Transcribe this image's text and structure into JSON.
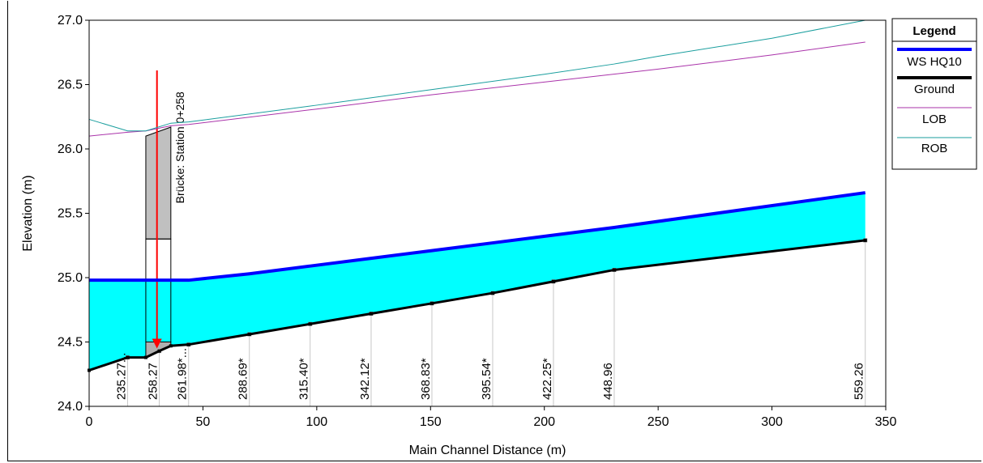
{
  "chart_data": {
    "type": "line",
    "title": "",
    "xlabel": "Main Channel Distance (m)",
    "ylabel": "Elevation (m)",
    "xlim": [
      0,
      350
    ],
    "ylim": [
      24.0,
      27.0
    ],
    "xticks": [
      0,
      50,
      100,
      150,
      200,
      250,
      300,
      350
    ],
    "yticks": [
      24.0,
      24.5,
      25.0,
      25.5,
      26.0,
      26.5,
      27.0
    ],
    "grid": false,
    "legend_position": "right",
    "legend": {
      "title": "Legend",
      "entries": [
        "WS  HQ10",
        "Ground",
        "LOB",
        "ROB"
      ]
    },
    "series": [
      {
        "name": "WS  HQ10",
        "color": "#0000ff",
        "x": [
          0,
          43.7,
          70.4,
          97.1,
          123.9,
          150.6,
          177.3,
          204.0,
          230.7,
          341.0
        ],
        "y": [
          24.98,
          24.98,
          25.03,
          25.09,
          25.15,
          25.21,
          25.27,
          25.33,
          25.39,
          25.66
        ]
      },
      {
        "name": "Ground",
        "color": "#000000",
        "x": [
          0,
          16.9,
          24.9,
          30.8,
          35.9,
          43.7,
          70.4,
          97.1,
          123.9,
          150.6,
          177.3,
          204.0,
          230.7,
          341.0
        ],
        "y": [
          24.28,
          24.38,
          24.38,
          24.43,
          24.47,
          24.48,
          24.56,
          24.64,
          24.72,
          24.8,
          24.88,
          24.97,
          25.06,
          25.29
        ]
      },
      {
        "name": "LOB",
        "color": "#aa33aa",
        "x": [
          0,
          16.9,
          24.9,
          35.9,
          43.7,
          100,
          150,
          200,
          250,
          300,
          341.0
        ],
        "y": [
          26.1,
          26.13,
          26.14,
          26.18,
          26.19,
          26.31,
          26.42,
          26.52,
          26.62,
          26.73,
          26.83
        ]
      },
      {
        "name": "ROB",
        "color": "#1a9e9e",
        "x": [
          0,
          16.9,
          24.9,
          35.9,
          43.7,
          100,
          150,
          200,
          230.7,
          250,
          300,
          341.0
        ],
        "y": [
          26.23,
          26.14,
          26.14,
          26.2,
          26.21,
          26.34,
          26.46,
          26.58,
          26.66,
          26.72,
          26.86,
          27.0
        ]
      }
    ],
    "cross_sections": [
      {
        "label": "235.27",
        "marker": "...",
        "x": 16.9
      },
      {
        "label": "258.27",
        "marker": "",
        "x": 30.8
      },
      {
        "label": "261.98",
        "marker": "*...",
        "x": 43.7
      },
      {
        "label": "288.69",
        "marker": "*",
        "x": 70.4
      },
      {
        "label": "315.40",
        "marker": "*",
        "x": 97.1
      },
      {
        "label": "342.12",
        "marker": "*",
        "x": 123.9
      },
      {
        "label": "368.83",
        "marker": "*",
        "x": 150.6
      },
      {
        "label": "395.54",
        "marker": "*",
        "x": 177.3
      },
      {
        "label": "422.25",
        "marker": "*",
        "x": 204.0
      },
      {
        "label": "448.96",
        "marker": "",
        "x": 230.7
      },
      {
        "label": "559.26",
        "marker": "",
        "x": 341.0
      }
    ],
    "bridge": {
      "label": "Brücke: Station 0+258",
      "x_left": 24.9,
      "x_right": 35.9,
      "deck_top_left": 26.1,
      "deck_top_right": 26.17,
      "deck_bottom": 25.3,
      "opening_bottom": 24.5,
      "arrow_x": 29.8,
      "arrow_top": 26.61,
      "arrow_bottom": 24.45
    },
    "colors": {
      "water_fill": "#00ffff",
      "bridge_deck": "#c0c0c0",
      "arrow": "#ff0000",
      "xs_line": "#c8c8c8"
    }
  }
}
